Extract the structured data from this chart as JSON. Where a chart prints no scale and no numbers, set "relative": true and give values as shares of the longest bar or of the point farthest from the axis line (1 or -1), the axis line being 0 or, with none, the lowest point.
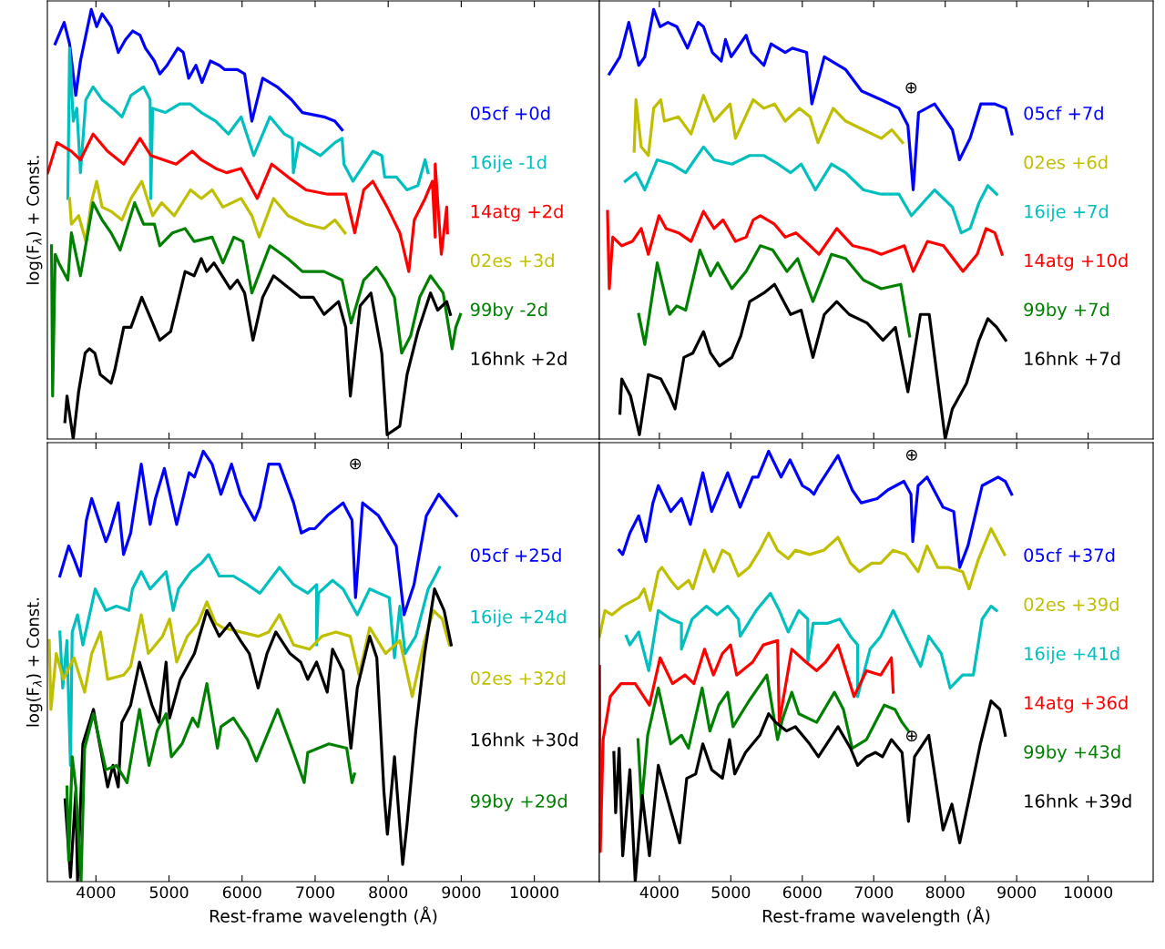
{
  "chart_data": [
    {
      "type": "line",
      "relative": true,
      "ylabel": "log(F$_{λ}$) + Const.",
      "xlim": [
        3335,
        10890
      ],
      "xticks": [
        4000,
        5000,
        6000,
        7000,
        8000,
        9000,
        10000
      ],
      "tick_labels": false,
      "grid": false,
      "legend": false,
      "marker": "none",
      "line_style": "solid",
      "series": [
        {
          "name": "05cf +0d",
          "color": "#0000ff",
          "x": [
            3442,
            3565,
            3639,
            3723,
            3788,
            3936,
            4010,
            4084,
            4207,
            4306,
            4405,
            4504,
            4603,
            4677,
            4800,
            4874,
            4973,
            5121,
            5195,
            5269,
            5368,
            5452,
            5566,
            5689,
            5763,
            5936,
            6035,
            6134,
            6282,
            6480,
            6677,
            6826,
            7122,
            7270,
            7369
          ],
          "values": [
            0.92,
            0.97,
            0.92,
            0.8,
            0.88,
            1.0,
            0.96,
            0.99,
            0.96,
            0.9,
            0.93,
            0.95,
            0.94,
            0.91,
            0.88,
            0.85,
            0.87,
            0.91,
            0.9,
            0.84,
            0.87,
            0.83,
            0.88,
            0.87,
            0.86,
            0.86,
            0.85,
            0.74,
            0.84,
            0.82,
            0.79,
            0.76,
            0.75,
            0.74,
            0.72
          ]
        },
        {
          "name": "16ije -1d",
          "color": "#00bfbf",
          "x": [
            3615,
            3639,
            3689,
            3738,
            3788,
            3862,
            3961,
            4084,
            4232,
            4356,
            4479,
            4652,
            4741,
            4751,
            4776,
            4949,
            5146,
            5294,
            5442,
            5640,
            5813,
            5986,
            6159,
            6381,
            6579,
            6687,
            6702,
            6776,
            7072,
            7270,
            7369,
            7394,
            7517,
            7789,
            7912,
            7952,
            8110,
            8258,
            8406,
            8505,
            8545
          ],
          "values": [
            0.56,
            0.91,
            0.74,
            0.77,
            0.62,
            0.79,
            0.82,
            0.79,
            0.77,
            0.75,
            0.8,
            0.82,
            0.79,
            0.56,
            0.77,
            0.76,
            0.78,
            0.78,
            0.76,
            0.74,
            0.71,
            0.75,
            0.66,
            0.75,
            0.71,
            0.7,
            0.62,
            0.69,
            0.66,
            0.69,
            0.7,
            0.64,
            0.6,
            0.67,
            0.66,
            0.61,
            0.61,
            0.58,
            0.59,
            0.65,
            0.62
          ]
        },
        {
          "name": "14atg +2d",
          "color": "#ff0000",
          "x": [
            3340,
            3466,
            3664,
            3788,
            3961,
            4158,
            4380,
            4603,
            4751,
            4924,
            5097,
            5319,
            5442,
            5640,
            5788,
            5986,
            6208,
            6406,
            6628,
            6875,
            7171,
            7418,
            7542,
            7665,
            7789,
            7986,
            8159,
            8282,
            8357,
            8505,
            8604,
            8643,
            8643,
            8727,
            8801,
            8811
          ],
          "values": [
            0.62,
            0.69,
            0.67,
            0.65,
            0.71,
            0.67,
            0.64,
            0.7,
            0.66,
            0.65,
            0.64,
            0.67,
            0.65,
            0.63,
            0.62,
            0.63,
            0.56,
            0.64,
            0.61,
            0.58,
            0.57,
            0.57,
            0.48,
            0.58,
            0.6,
            0.54,
            0.48,
            0.39,
            0.51,
            0.56,
            0.6,
            0.47,
            0.64,
            0.43,
            0.54,
            0.48
          ]
        },
        {
          "name": "02es +3d",
          "color": "#bfbf00",
          "x": [
            3639,
            3664,
            3763,
            3862,
            3936,
            4010,
            4084,
            4207,
            4356,
            4479,
            4627,
            4776,
            4899,
            5072,
            5294,
            5442,
            5590,
            5738,
            5986,
            6134,
            6233,
            6431,
            6628,
            6875,
            7122,
            7270,
            7409
          ],
          "values": [
            0.56,
            0.5,
            0.52,
            0.46,
            0.55,
            0.6,
            0.54,
            0.53,
            0.51,
            0.56,
            0.6,
            0.52,
            0.55,
            0.52,
            0.58,
            0.56,
            0.58,
            0.54,
            0.56,
            0.52,
            0.47,
            0.56,
            0.52,
            0.5,
            0.49,
            0.51,
            0.48
          ]
        },
        {
          "name": "99by -2d",
          "color": "#008000",
          "x": [
            3392,
            3407,
            3442,
            3491,
            3615,
            3664,
            3788,
            3961,
            4084,
            4207,
            4331,
            4529,
            4652,
            4800,
            4874,
            5047,
            5220,
            5344,
            5590,
            5738,
            5887,
            6010,
            6134,
            6381,
            6628,
            6826,
            7122,
            7369,
            7493,
            7665,
            7838,
            7961,
            8085,
            8184,
            8307,
            8431,
            8579,
            8752,
            8875,
            8925,
            8989
          ],
          "values": [
            0.45,
            0.1,
            0.43,
            0.41,
            0.37,
            0.48,
            0.38,
            0.55,
            0.51,
            0.48,
            0.44,
            0.55,
            0.5,
            0.5,
            0.45,
            0.48,
            0.49,
            0.46,
            0.47,
            0.41,
            0.47,
            0.46,
            0.34,
            0.45,
            0.42,
            0.39,
            0.39,
            0.37,
            0.27,
            0.37,
            0.4,
            0.37,
            0.33,
            0.2,
            0.24,
            0.33,
            0.38,
            0.34,
            0.21,
            0.26,
            0.29
          ]
        },
        {
          "name": "16hnk +2d",
          "color": "#000000",
          "x": [
            3575,
            3604,
            3689,
            3763,
            3852,
            3911,
            3985,
            4059,
            4207,
            4257,
            4380,
            4479,
            4627,
            4751,
            4874,
            5022,
            5121,
            5220,
            5344,
            5442,
            5516,
            5615,
            5837,
            5936,
            6035,
            6149,
            6282,
            6431,
            6579,
            6801,
            6974,
            7122,
            7320,
            7418,
            7482,
            7616,
            7764,
            7912,
            7986,
            8159,
            8258,
            8406,
            8579,
            8678,
            8801,
            8851
          ],
          "values": [
            0.04,
            0.1,
            0.0,
            0.11,
            0.2,
            0.21,
            0.2,
            0.15,
            0.13,
            0.16,
            0.26,
            0.26,
            0.33,
            0.28,
            0.23,
            0.25,
            0.32,
            0.39,
            0.38,
            0.42,
            0.39,
            0.41,
            0.35,
            0.37,
            0.34,
            0.23,
            0.33,
            0.38,
            0.36,
            0.33,
            0.33,
            0.29,
            0.32,
            0.26,
            0.1,
            0.31,
            0.34,
            0.2,
            0.01,
            0.03,
            0.15,
            0.25,
            0.34,
            0.3,
            0.32,
            0.29
          ]
        }
      ]
    },
    {
      "type": "line",
      "relative": true,
      "xlim": [
        3160,
        10910
      ],
      "xticks": [
        4000,
        5000,
        6000,
        7000,
        8000,
        9000,
        10000
      ],
      "tick_labels": false,
      "grid": false,
      "legend": false,
      "marker": "none",
      "line_style": "solid",
      "annotations": [
        "⊕"
      ],
      "series": [
        {
          "name": "05cf +7d",
          "color": "#0000ff",
          "x": [
            3300,
            3448,
            3572,
            3711,
            3796,
            3920,
            4010,
            4119,
            4244,
            4393,
            4542,
            4617,
            4741,
            4866,
            4925,
            5005,
            5214,
            5289,
            5463,
            5562,
            5761,
            5861,
            6060,
            6134,
            6308,
            6607,
            6831,
            7104,
            7353,
            7478,
            7552,
            7627,
            7851,
            8100,
            8199,
            8348,
            8497,
            8696,
            8846,
            8934
          ],
          "values": [
            0.85,
            0.89,
            0.97,
            0.87,
            0.89,
            1.0,
            0.96,
            0.97,
            0.96,
            0.91,
            0.97,
            0.96,
            0.9,
            0.88,
            0.93,
            0.89,
            0.94,
            0.9,
            0.87,
            0.92,
            0.9,
            0.91,
            0.9,
            0.78,
            0.89,
            0.86,
            0.81,
            0.79,
            0.77,
            0.73,
            0.58,
            0.76,
            0.78,
            0.72,
            0.65,
            0.7,
            0.78,
            0.78,
            0.77,
            0.71
          ]
        },
        {
          "name": "02es +6d",
          "color": "#bfbf00",
          "x": [
            3647,
            3672,
            3746,
            3846,
            3920,
            4020,
            4070,
            4269,
            4443,
            4617,
            4766,
            4990,
            5065,
            5313,
            5463,
            5612,
            5761,
            5960,
            6109,
            6219,
            6433,
            6607,
            6856,
            7104,
            7253,
            7403
          ],
          "values": [
            0.67,
            0.79,
            0.68,
            0.66,
            0.77,
            0.79,
            0.74,
            0.75,
            0.71,
            0.8,
            0.74,
            0.78,
            0.7,
            0.79,
            0.77,
            0.78,
            0.74,
            0.77,
            0.75,
            0.69,
            0.77,
            0.74,
            0.72,
            0.7,
            0.72,
            0.69
          ]
        },
        {
          "name": "16ije +7d",
          "color": "#00bfbf",
          "x": [
            3522,
            3672,
            3796,
            3970,
            4169,
            4368,
            4617,
            4766,
            5015,
            5264,
            5463,
            5662,
            5836,
            5985,
            6184,
            6408,
            6607,
            6856,
            7104,
            7353,
            7527,
            7851,
            8100,
            8224,
            8348,
            8473,
            8597,
            8721
          ],
          "values": [
            0.6,
            0.62,
            0.58,
            0.65,
            0.64,
            0.62,
            0.68,
            0.65,
            0.64,
            0.66,
            0.66,
            0.64,
            0.62,
            0.64,
            0.58,
            0.64,
            0.62,
            0.58,
            0.57,
            0.57,
            0.52,
            0.58,
            0.54,
            0.48,
            0.49,
            0.55,
            0.59,
            0.57
          ]
        },
        {
          "name": "14atg +10d",
          "color": "#ff0000",
          "x": [
            3274,
            3299,
            3348,
            3473,
            3622,
            3746,
            3846,
            3995,
            4094,
            4269,
            4443,
            4617,
            4766,
            4891,
            5065,
            5214,
            5313,
            5413,
            5612,
            5761,
            5910,
            6109,
            6233,
            6482,
            6706,
            6955,
            7104,
            7428,
            7552,
            7751,
            7975,
            8249,
            8448,
            8572,
            8696,
            8796
          ],
          "values": [
            0.53,
            0.35,
            0.47,
            0.45,
            0.46,
            0.49,
            0.43,
            0.52,
            0.49,
            0.48,
            0.46,
            0.53,
            0.49,
            0.51,
            0.46,
            0.47,
            0.51,
            0.52,
            0.5,
            0.47,
            0.48,
            0.45,
            0.43,
            0.49,
            0.45,
            0.44,
            0.43,
            0.45,
            0.39,
            0.46,
            0.45,
            0.39,
            0.43,
            0.49,
            0.48,
            0.43
          ]
        },
        {
          "name": "99by +7d",
          "color": "#008000",
          "x": [
            3711,
            3796,
            3970,
            4144,
            4244,
            4368,
            4567,
            4716,
            4816,
            5015,
            5214,
            5413,
            5587,
            5786,
            5935,
            6149,
            6408,
            6607,
            6856,
            7104,
            7378,
            7502
          ],
          "values": [
            0.29,
            0.22,
            0.41,
            0.29,
            0.31,
            0.3,
            0.44,
            0.38,
            0.41,
            0.35,
            0.39,
            0.45,
            0.44,
            0.39,
            0.42,
            0.32,
            0.43,
            0.42,
            0.37,
            0.35,
            0.36,
            0.24
          ]
        },
        {
          "name": "16hnk +7d",
          "color": "#000000",
          "x": [
            3448,
            3473,
            3597,
            3721,
            3846,
            4020,
            4144,
            4219,
            4343,
            4468,
            4617,
            4716,
            4841,
            5015,
            5139,
            5264,
            5463,
            5612,
            5836,
            5985,
            6149,
            6308,
            6482,
            6657,
            6906,
            7129,
            7303,
            7478,
            7652,
            7776,
            8000,
            8100,
            8299,
            8473,
            8597,
            8721,
            8846
          ],
          "values": [
            0.06,
            0.14,
            0.1,
            0.01,
            0.15,
            0.14,
            0.1,
            0.07,
            0.19,
            0.2,
            0.25,
            0.2,
            0.17,
            0.19,
            0.24,
            0.32,
            0.34,
            0.36,
            0.29,
            0.3,
            0.19,
            0.29,
            0.32,
            0.29,
            0.27,
            0.23,
            0.26,
            0.11,
            0.29,
            0.29,
            0.0,
            0.07,
            0.13,
            0.23,
            0.28,
            0.26,
            0.23
          ]
        }
      ]
    },
    {
      "type": "line",
      "relative": true,
      "ylabel": "log(F$_{λ}$) + Const.",
      "xlabel": "Rest-frame wavelength (Å)",
      "xlim": [
        3335,
        10890
      ],
      "xticks": [
        4000,
        5000,
        6000,
        7000,
        8000,
        9000,
        10000
      ],
      "tick_labels": "x",
      "grid": false,
      "legend": false,
      "marker": "none",
      "line_style": "solid",
      "annotations": [
        "⊕"
      ],
      "series": [
        {
          "name": "05cf +25d",
          "color": "#0000ff",
          "x": [
            3506,
            3627,
            3700,
            3787,
            3869,
            3942,
            4039,
            4136,
            4184,
            4305,
            4378,
            4475,
            4620,
            4742,
            4814,
            4936,
            5105,
            5275,
            5348,
            5469,
            5590,
            5711,
            5856,
            5978,
            6172,
            6244,
            6365,
            6511,
            6705,
            6811,
            6923,
            6996,
            7165,
            7383,
            7505,
            7553,
            7650,
            7868,
            8110,
            8217,
            8353,
            8522,
            8692,
            8837,
            8934
          ],
          "values": [
            0.71,
            0.78,
            0.75,
            0.71,
            0.84,
            0.89,
            0.84,
            0.79,
            0.81,
            0.88,
            0.76,
            0.81,
            0.97,
            0.83,
            0.89,
            0.96,
            0.83,
            0.95,
            0.94,
            1.0,
            0.97,
            0.9,
            0.97,
            0.9,
            0.84,
            0.87,
            0.97,
            0.97,
            0.88,
            0.81,
            0.82,
            0.82,
            0.85,
            0.88,
            0.84,
            0.66,
            0.88,
            0.85,
            0.78,
            0.62,
            0.69,
            0.85,
            0.9,
            0.87,
            0.85
          ]
        },
        {
          "name": "16ije +24d",
          "color": "#00bfbf",
          "x": [
            3506,
            3545,
            3603,
            3651,
            3675,
            3748,
            3821,
            3990,
            4136,
            4281,
            4451,
            4499,
            4620,
            4742,
            4960,
            5057,
            5130,
            5299,
            5445,
            5542,
            5687,
            5881,
            6075,
            6244,
            6511,
            6705,
            6899,
            7020,
            7020,
            7044,
            7238,
            7383,
            7577,
            7747,
            8014,
            8086,
            8159,
            8232,
            8377,
            8547,
            8643,
            8702
          ],
          "values": [
            0.58,
            0.45,
            0.56,
            0.27,
            0.58,
            0.62,
            0.55,
            0.68,
            0.63,
            0.64,
            0.63,
            0.68,
            0.72,
            0.68,
            0.72,
            0.63,
            0.68,
            0.72,
            0.74,
            0.76,
            0.71,
            0.71,
            0.69,
            0.67,
            0.73,
            0.69,
            0.67,
            0.69,
            0.55,
            0.67,
            0.7,
            0.68,
            0.62,
            0.68,
            0.66,
            0.52,
            0.64,
            0.53,
            0.57,
            0.68,
            0.71,
            0.73
          ]
        },
        {
          "name": "02es +32d",
          "color": "#bfbf00",
          "x": [
            3360,
            3384,
            3457,
            3554,
            3700,
            3845,
            3942,
            4063,
            4160,
            4378,
            4475,
            4620,
            4717,
            4911,
            5008,
            5105,
            5251,
            5396,
            5518,
            5639,
            5735,
            5978,
            6220,
            6365,
            6511,
            6705,
            6923,
            7093,
            7286,
            7480,
            7601,
            7747,
            7965,
            8159,
            8329,
            8498,
            8619,
            8740,
            8837
          ],
          "values": [
            0.56,
            0.4,
            0.53,
            0.47,
            0.52,
            0.44,
            0.53,
            0.58,
            0.47,
            0.48,
            0.5,
            0.62,
            0.53,
            0.57,
            0.61,
            0.51,
            0.57,
            0.6,
            0.65,
            0.6,
            0.59,
            0.58,
            0.57,
            0.58,
            0.62,
            0.55,
            0.54,
            0.57,
            0.58,
            0.57,
            0.48,
            0.59,
            0.53,
            0.56,
            0.43,
            0.56,
            0.63,
            0.61,
            0.55
          ]
        },
        {
          "name": "16hnk +30d",
          "color": "#000000",
          "x": [
            3578,
            3651,
            3724,
            3748,
            3821,
            3966,
            4039,
            4160,
            4233,
            4305,
            4354,
            4475,
            4596,
            4766,
            4863,
            4960,
            5008,
            5154,
            5348,
            5518,
            5687,
            5832,
            5978,
            6099,
            6220,
            6341,
            6462,
            6656,
            6802,
            6899,
            7020,
            7165,
            7238,
            7383,
            7490,
            7577,
            7747,
            7844,
            7941,
            7989,
            8086,
            8198,
            8256,
            8377,
            8498,
            8634,
            8765,
            8862
          ],
          "values": [
            0.19,
            0.01,
            0.21,
            0.0,
            0.32,
            0.4,
            0.33,
            0.22,
            0.27,
            0.22,
            0.37,
            0.41,
            0.51,
            0.41,
            0.37,
            0.51,
            0.38,
            0.47,
            0.53,
            0.63,
            0.57,
            0.6,
            0.56,
            0.53,
            0.45,
            0.53,
            0.58,
            0.53,
            0.51,
            0.47,
            0.51,
            0.44,
            0.54,
            0.49,
            0.31,
            0.45,
            0.57,
            0.52,
            0.21,
            0.11,
            0.29,
            0.04,
            0.13,
            0.35,
            0.53,
            0.68,
            0.63,
            0.55
          ]
        },
        {
          "name": "99by +29d",
          "color": "#008000",
          "x": [
            3603,
            3627,
            3675,
            3724,
            3796,
            3845,
            3966,
            4136,
            4281,
            4426,
            4596,
            4727,
            4838,
            4960,
            5033,
            5178,
            5323,
            5396,
            5518,
            5663,
            5711,
            5881,
            6075,
            6196,
            6487,
            6705,
            6850,
            6899,
            7189,
            7432,
            7505,
            7538
          ],
          "values": [
            0.22,
            0.05,
            0.29,
            0.22,
            0.0,
            0.31,
            0.39,
            0.26,
            0.27,
            0.23,
            0.4,
            0.27,
            0.35,
            0.39,
            0.29,
            0.32,
            0.38,
            0.36,
            0.46,
            0.31,
            0.36,
            0.38,
            0.33,
            0.28,
            0.4,
            0.3,
            0.23,
            0.3,
            0.32,
            0.31,
            0.23,
            0.25
          ]
        }
      ]
    },
    {
      "type": "line",
      "relative": true,
      "xlabel": "Rest-frame wavelength (Å)",
      "xlim": [
        3160,
        10910
      ],
      "xticks": [
        4000,
        5000,
        6000,
        7000,
        8000,
        9000,
        10000
      ],
      "tick_labels": "x",
      "grid": false,
      "legend": false,
      "marker": "none",
      "line_style": "solid",
      "annotations": [
        "⊕",
        "⊕"
      ],
      "series": [
        {
          "name": "05cf +37d",
          "color": "#0000ff",
          "x": [
            3437,
            3487,
            3587,
            3711,
            3811,
            3910,
            3985,
            4159,
            4309,
            4433,
            4608,
            4732,
            4832,
            4956,
            5130,
            5305,
            5380,
            5529,
            5703,
            5828,
            6002,
            6102,
            6162,
            6226,
            6500,
            6699,
            6824,
            7048,
            7197,
            7422,
            7521,
            7546,
            7621,
            7746,
            7970,
            8119,
            8203,
            8318,
            8517,
            8741,
            8841,
            8930
          ],
          "values": [
            0.77,
            0.76,
            0.81,
            0.85,
            0.79,
            0.88,
            0.92,
            0.86,
            0.89,
            0.83,
            0.95,
            0.86,
            0.9,
            0.95,
            0.87,
            0.94,
            0.94,
            1.0,
            0.94,
            0.98,
            0.92,
            0.91,
            0.9,
            0.92,
            0.99,
            0.91,
            0.88,
            0.89,
            0.91,
            0.93,
            0.9,
            0.79,
            0.92,
            0.94,
            0.87,
            0.86,
            0.73,
            0.78,
            0.92,
            0.94,
            0.93,
            0.9
          ]
        },
        {
          "name": "02es +39d",
          "color": "#bfbf00",
          "x": [
            3163,
            3238,
            3338,
            3487,
            3711,
            3786,
            3871,
            3985,
            4035,
            4159,
            4259,
            4409,
            4468,
            4633,
            4757,
            4882,
            4981,
            5106,
            5255,
            5405,
            5529,
            5654,
            5803,
            5903,
            6102,
            6301,
            6500,
            6674,
            6799,
            6973,
            7098,
            7272,
            7446,
            7621,
            7746,
            7895,
            8044,
            8243,
            8333,
            8467,
            8641,
            8831
          ],
          "values": [
            0.57,
            0.63,
            0.62,
            0.64,
            0.66,
            0.68,
            0.63,
            0.72,
            0.73,
            0.7,
            0.68,
            0.7,
            0.68,
            0.77,
            0.72,
            0.77,
            0.76,
            0.71,
            0.73,
            0.77,
            0.81,
            0.77,
            0.75,
            0.77,
            0.76,
            0.77,
            0.8,
            0.74,
            0.72,
            0.74,
            0.74,
            0.77,
            0.76,
            0.72,
            0.78,
            0.73,
            0.73,
            0.72,
            0.68,
            0.75,
            0.82,
            0.76
          ]
        },
        {
          "name": "16ije +41d",
          "color": "#00bfbf",
          "x": [
            3537,
            3587,
            3711,
            3851,
            3985,
            4159,
            4309,
            4309,
            4458,
            4657,
            4807,
            4956,
            5106,
            5131,
            5355,
            5554,
            5678,
            5803,
            5953,
            6077,
            6077,
            6152,
            6351,
            6525,
            6674,
            6774,
            6774,
            6948,
            7098,
            7272,
            7446,
            7656,
            7770,
            7944,
            8069,
            8243,
            8393,
            8517,
            8641,
            8716
          ],
          "values": [
            0.57,
            0.55,
            0.58,
            0.49,
            0.63,
            0.61,
            0.6,
            0.54,
            0.61,
            0.64,
            0.62,
            0.64,
            0.61,
            0.57,
            0.63,
            0.67,
            0.63,
            0.58,
            0.63,
            0.61,
            0.51,
            0.6,
            0.6,
            0.61,
            0.57,
            0.55,
            0.43,
            0.54,
            0.57,
            0.63,
            0.57,
            0.5,
            0.57,
            0.53,
            0.45,
            0.48,
            0.48,
            0.61,
            0.64,
            0.63
          ]
        },
        {
          "name": "14atg +36d",
          "color": "#ff0000",
          "x": [
            3163,
            3173,
            3213,
            3313,
            3462,
            3662,
            3861,
            4010,
            4184,
            4359,
            4483,
            4632,
            4757,
            4882,
            4996,
            5081,
            5305,
            5455,
            5654,
            5678,
            5853,
            6052,
            6201,
            6326,
            6500,
            6724,
            6898,
            7098,
            7247,
            7272
          ],
          "values": [
            0.5,
            0.07,
            0.33,
            0.43,
            0.46,
            0.46,
            0.41,
            0.52,
            0.46,
            0.48,
            0.46,
            0.54,
            0.48,
            0.53,
            0.55,
            0.48,
            0.51,
            0.55,
            0.56,
            0.37,
            0.54,
            0.51,
            0.49,
            0.51,
            0.55,
            0.43,
            0.49,
            0.48,
            0.52,
            0.44
          ]
        },
        {
          "name": "99by +43d",
          "color": "#008000",
          "x": [
            3701,
            3751,
            3836,
            3985,
            4159,
            4309,
            4408,
            4598,
            4707,
            4832,
            4956,
            5031,
            5255,
            5504,
            5654,
            5728,
            5853,
            5953,
            6201,
            6450,
            6575,
            6699,
            6898,
            7147,
            7297,
            7396,
            7486
          ],
          "values": [
            0.33,
            0.18,
            0.34,
            0.45,
            0.32,
            0.34,
            0.31,
            0.45,
            0.35,
            0.41,
            0.44,
            0.36,
            0.42,
            0.48,
            0.33,
            0.38,
            0.44,
            0.39,
            0.37,
            0.44,
            0.4,
            0.31,
            0.33,
            0.41,
            0.4,
            0.37,
            0.35
          ]
        },
        {
          "name": "16hnk +39d",
          "color": "#000000",
          "x": [
            3363,
            3388,
            3437,
            3487,
            3587,
            3662,
            3761,
            3861,
            3985,
            4134,
            4284,
            4383,
            4508,
            4608,
            4732,
            4882,
            4981,
            5055,
            5205,
            5405,
            5529,
            5628,
            5778,
            5903,
            6102,
            6226,
            6500,
            6674,
            6774,
            6898,
            7023,
            7122,
            7247,
            7396,
            7486,
            7571,
            7770,
            7970,
            8094,
            8203,
            8343,
            8492,
            8641,
            8766,
            8841
          ],
          "values": [
            0.3,
            0.16,
            0.31,
            0.06,
            0.26,
            0.0,
            0.2,
            0.06,
            0.27,
            0.18,
            0.09,
            0.24,
            0.25,
            0.32,
            0.26,
            0.24,
            0.33,
            0.25,
            0.3,
            0.34,
            0.39,
            0.37,
            0.35,
            0.36,
            0.32,
            0.29,
            0.36,
            0.31,
            0.27,
            0.29,
            0.3,
            0.29,
            0.33,
            0.3,
            0.14,
            0.29,
            0.34,
            0.12,
            0.18,
            0.09,
            0.2,
            0.32,
            0.42,
            0.4,
            0.34
          ]
        }
      ]
    }
  ]
}
